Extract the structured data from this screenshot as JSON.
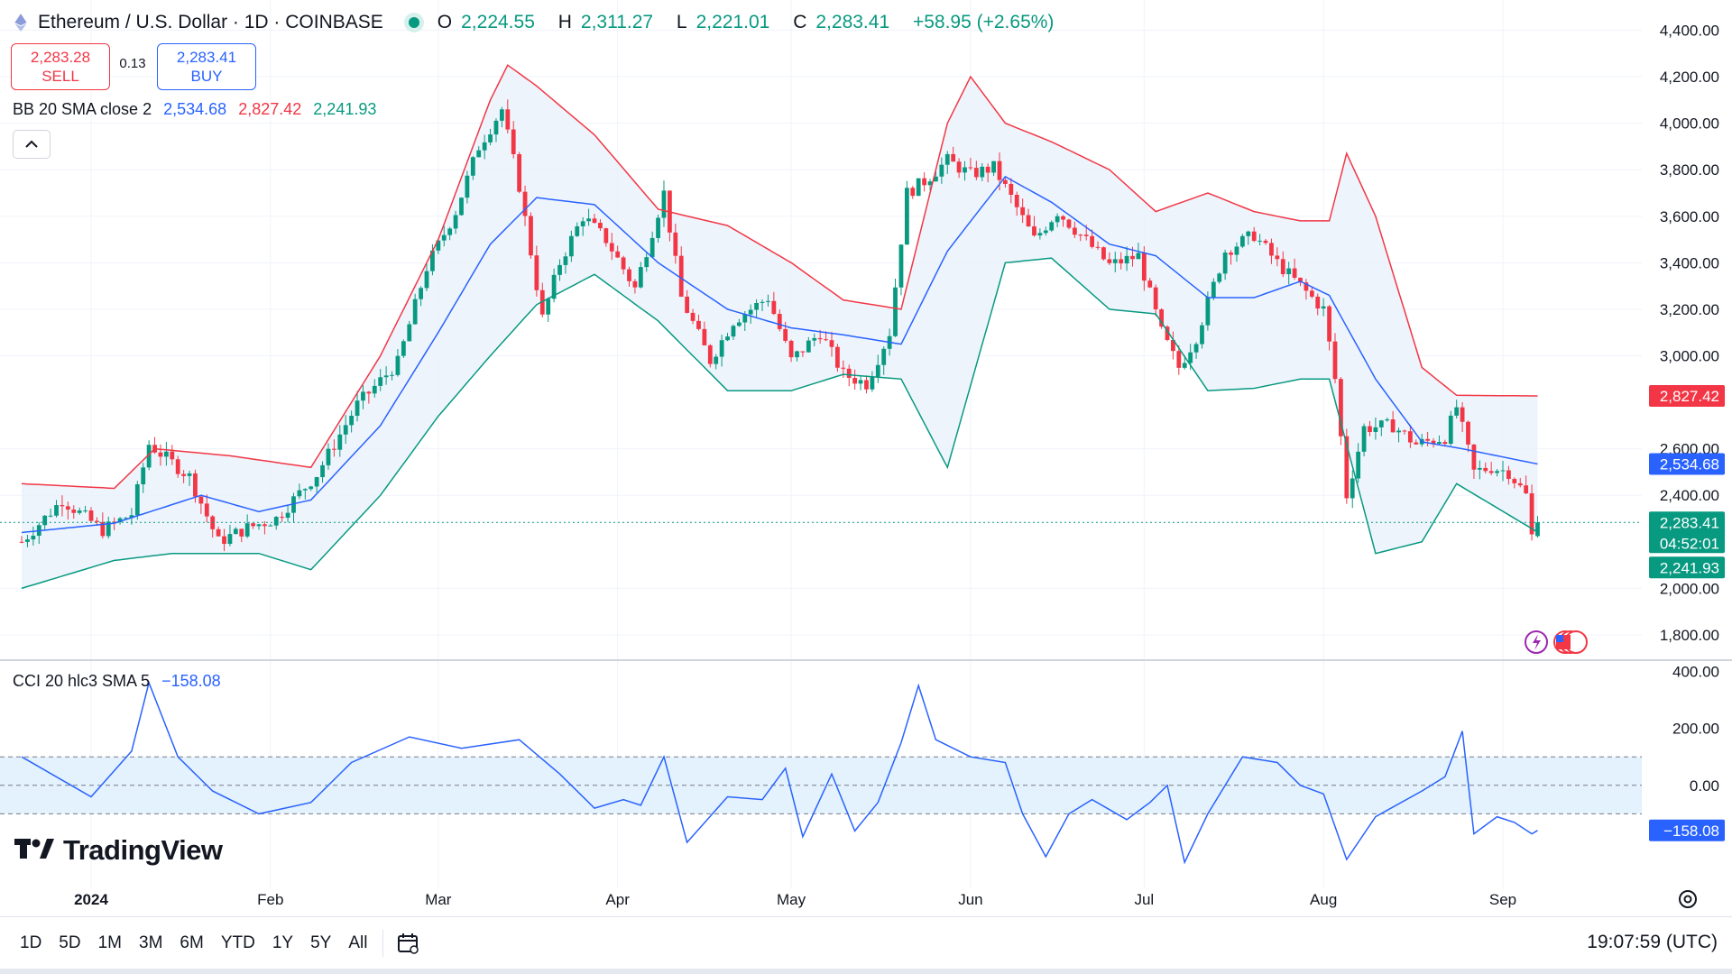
{
  "header": {
    "coin_icon": "ethereum-icon",
    "symbol": "Ethereum / U.S. Dollar · 1D · COINBASE",
    "status_color": "#089981",
    "o_label": "O",
    "o": "2,224.55",
    "h_label": "H",
    "h": "2,311.27",
    "l_label": "L",
    "l": "2,221.01",
    "c_label": "C",
    "c": "2,283.41",
    "change": "+58.95 (+2.65%)"
  },
  "trade": {
    "sell_price": "2,283.28",
    "sell_label": "SELL",
    "spread": "0.13",
    "buy_price": "2,283.41",
    "buy_label": "BUY"
  },
  "indicators": {
    "bb_name": "BB 20 SMA close 2",
    "bb_basis": "2,534.68",
    "bb_upper": "2,827.42",
    "bb_lower": "2,241.93",
    "cci_name": "CCI 20 hlc3 SMA 5",
    "cci_value": "−158.08",
    "collapse_icon": "chevron-up-icon"
  },
  "logo_text": "TradingView",
  "toolbar": {
    "ranges": [
      "1D",
      "5D",
      "1M",
      "3M",
      "6M",
      "YTD",
      "1Y",
      "5Y",
      "All"
    ],
    "calendar_icon": "calendar-icon",
    "clock": "19:07:59 (UTC)"
  },
  "colors": {
    "up": "#089981",
    "down": "#f23645",
    "basis": "#2962ff",
    "upper": "#f23645",
    "lower": "#089981",
    "band_fill": "#e9f1fb",
    "cci": "#2962ff",
    "cci_band": "#e3f2fd"
  },
  "chart_data": [
    {
      "type": "candlestick",
      "title": "Ethereum / U.S. Dollar · 1D · COINBASE",
      "y_ticks": [
        "4,400.00",
        "4,200.00",
        "4,000.00",
        "3,800.00",
        "3,600.00",
        "3,400.00",
        "3,200.00",
        "3,000.00",
        "2,600.00",
        "2,400.00",
        "2,000.00",
        "1,800.00"
      ],
      "ylim": [
        1730,
        4460
      ],
      "x_ticks": [
        "2024",
        "Feb",
        "Mar",
        "Apr",
        "May",
        "Jun",
        "Jul",
        "Aug",
        "Sep"
      ],
      "x_tick_dates": [
        "2024-01-01",
        "2024-02-01",
        "2024-03-01",
        "2024-04-01",
        "2024-05-01",
        "2024-06-01",
        "2024-07-01",
        "2024-08-01",
        "2024-09-01"
      ],
      "price_labels": {
        "bb_upper": "2,827.42",
        "bb_basis": "2,534.68",
        "last": "2,283.41",
        "countdown": "04:52:01",
        "bb_lower": "2,241.93"
      },
      "last_value": 2283.41,
      "series": [
        {
          "name": "ETHUSD",
          "close_points": [
            [
              "2023-12-20",
              2200
            ],
            [
              "2023-12-27",
              2380
            ],
            [
              "2024-01-03",
              2250
            ],
            [
              "2024-01-08",
              2320
            ],
            [
              "2024-01-11",
              2620
            ],
            [
              "2024-01-18",
              2480
            ],
            [
              "2024-01-23",
              2200
            ],
            [
              "2024-01-28",
              2260
            ],
            [
              "2024-02-02",
              2300
            ],
            [
              "2024-02-09",
              2490
            ],
            [
              "2024-02-16",
              2790
            ],
            [
              "2024-02-23",
              2970
            ],
            [
              "2024-02-28",
              3380
            ],
            [
              "2024-03-04",
              3620
            ],
            [
              "2024-03-08",
              3900
            ],
            [
              "2024-03-12",
              4060
            ],
            [
              "2024-03-15",
              3730
            ],
            [
              "2024-03-19",
              3160
            ],
            [
              "2024-03-22",
              3400
            ],
            [
              "2024-03-26",
              3600
            ],
            [
              "2024-03-30",
              3500
            ],
            [
              "2024-04-04",
              3290
            ],
            [
              "2024-04-09",
              3700
            ],
            [
              "2024-04-12",
              3250
            ],
            [
              "2024-04-17",
              2980
            ],
            [
              "2024-04-21",
              3150
            ],
            [
              "2024-04-27",
              3250
            ],
            [
              "2024-05-01",
              2980
            ],
            [
              "2024-05-06",
              3100
            ],
            [
              "2024-05-10",
              2920
            ],
            [
              "2024-05-14",
              2880
            ],
            [
              "2024-05-18",
              3100
            ],
            [
              "2024-05-21",
              3700
            ],
            [
              "2024-05-24",
              3750
            ],
            [
              "2024-05-28",
              3840
            ],
            [
              "2024-06-01",
              3780
            ],
            [
              "2024-06-05",
              3810
            ],
            [
              "2024-06-08",
              3680
            ],
            [
              "2024-06-12",
              3500
            ],
            [
              "2024-06-16",
              3620
            ],
            [
              "2024-06-20",
              3520
            ],
            [
              "2024-06-25",
              3390
            ],
            [
              "2024-06-30",
              3430
            ],
            [
              "2024-07-04",
              3100
            ],
            [
              "2024-07-07",
              2950
            ],
            [
              "2024-07-10",
              3080
            ],
            [
              "2024-07-15",
              3450
            ],
            [
              "2024-07-20",
              3520
            ],
            [
              "2024-07-24",
              3400
            ],
            [
              "2024-07-28",
              3300
            ],
            [
              "2024-08-01",
              3200
            ],
            [
              "2024-08-03",
              2900
            ],
            [
              "2024-08-05",
              2400
            ],
            [
              "2024-08-08",
              2690
            ],
            [
              "2024-08-13",
              2700
            ],
            [
              "2024-08-17",
              2620
            ],
            [
              "2024-08-22",
              2650
            ],
            [
              "2024-08-24",
              2780
            ],
            [
              "2024-08-27",
              2500
            ],
            [
              "2024-08-30",
              2520
            ],
            [
              "2024-09-02",
              2500
            ],
            [
              "2024-09-05",
              2400
            ],
            [
              "2024-09-06",
              2224.55
            ],
            [
              "2024-09-07",
              2283.41
            ]
          ]
        },
        {
          "name": "BB basis",
          "points": [
            [
              "2023-12-20",
              2240
            ],
            [
              "2024-01-05",
              2280
            ],
            [
              "2024-01-20",
              2400
            ],
            [
              "2024-01-30",
              2330
            ],
            [
              "2024-02-08",
              2380
            ],
            [
              "2024-02-20",
              2700
            ],
            [
              "2024-03-01",
              3100
            ],
            [
              "2024-03-10",
              3480
            ],
            [
              "2024-03-18",
              3680
            ],
            [
              "2024-03-28",
              3650
            ],
            [
              "2024-04-08",
              3400
            ],
            [
              "2024-04-20",
              3200
            ],
            [
              "2024-05-01",
              3120
            ],
            [
              "2024-05-10",
              3090
            ],
            [
              "2024-05-20",
              3050
            ],
            [
              "2024-05-28",
              3450
            ],
            [
              "2024-06-07",
              3770
            ],
            [
              "2024-06-15",
              3660
            ],
            [
              "2024-06-25",
              3480
            ],
            [
              "2024-07-03",
              3430
            ],
            [
              "2024-07-12",
              3250
            ],
            [
              "2024-07-20",
              3250
            ],
            [
              "2024-07-28",
              3320
            ],
            [
              "2024-08-02",
              3260
            ],
            [
              "2024-08-10",
              2900
            ],
            [
              "2024-08-18",
              2630
            ],
            [
              "2024-08-25",
              2600
            ],
            [
              "2024-09-07",
              2534.68
            ]
          ]
        },
        {
          "name": "BB upper",
          "points": [
            [
              "2023-12-20",
              2450
            ],
            [
              "2024-01-05",
              2430
            ],
            [
              "2024-01-12",
              2600
            ],
            [
              "2024-01-25",
              2570
            ],
            [
              "2024-02-08",
              2520
            ],
            [
              "2024-02-20",
              3000
            ],
            [
              "2024-03-01",
              3500
            ],
            [
              "2024-03-10",
              4100
            ],
            [
              "2024-03-13",
              4250
            ],
            [
              "2024-03-18",
              4160
            ],
            [
              "2024-03-28",
              3950
            ],
            [
              "2024-04-08",
              3630
            ],
            [
              "2024-04-20",
              3560
            ],
            [
              "2024-05-01",
              3400
            ],
            [
              "2024-05-10",
              3240
            ],
            [
              "2024-05-20",
              3200
            ],
            [
              "2024-05-28",
              4000
            ],
            [
              "2024-06-01",
              4200
            ],
            [
              "2024-06-07",
              4000
            ],
            [
              "2024-06-15",
              3920
            ],
            [
              "2024-06-25",
              3800
            ],
            [
              "2024-07-03",
              3620
            ],
            [
              "2024-07-12",
              3700
            ],
            [
              "2024-07-20",
              3620
            ],
            [
              "2024-07-28",
              3580
            ],
            [
              "2024-08-02",
              3580
            ],
            [
              "2024-08-05",
              3870
            ],
            [
              "2024-08-10",
              3600
            ],
            [
              "2024-08-18",
              2950
            ],
            [
              "2024-08-24",
              2830
            ],
            [
              "2024-09-07",
              2827.42
            ]
          ]
        },
        {
          "name": "BB lower",
          "points": [
            [
              "2023-12-20",
              2000
            ],
            [
              "2024-01-05",
              2120
            ],
            [
              "2024-01-15",
              2150
            ],
            [
              "2024-01-30",
              2150
            ],
            [
              "2024-02-08",
              2080
            ],
            [
              "2024-02-20",
              2400
            ],
            [
              "2024-03-01",
              2740
            ],
            [
              "2024-03-10",
              3000
            ],
            [
              "2024-03-18",
              3220
            ],
            [
              "2024-03-28",
              3350
            ],
            [
              "2024-04-08",
              3150
            ],
            [
              "2024-04-20",
              2850
            ],
            [
              "2024-05-01",
              2850
            ],
            [
              "2024-05-10",
              2920
            ],
            [
              "2024-05-20",
              2900
            ],
            [
              "2024-05-28",
              2520
            ],
            [
              "2024-06-07",
              3400
            ],
            [
              "2024-06-15",
              3420
            ],
            [
              "2024-06-25",
              3200
            ],
            [
              "2024-07-03",
              3180
            ],
            [
              "2024-07-12",
              2850
            ],
            [
              "2024-07-20",
              2860
            ],
            [
              "2024-07-28",
              2900
            ],
            [
              "2024-08-02",
              2900
            ],
            [
              "2024-08-10",
              2150
            ],
            [
              "2024-08-18",
              2200
            ],
            [
              "2024-08-24",
              2450
            ],
            [
              "2024-09-07",
              2241.93
            ]
          ]
        }
      ]
    },
    {
      "type": "line",
      "title": "CCI 20 hlc3 SMA 5",
      "y_ticks": [
        "400.00",
        "200.00",
        "0.00"
      ],
      "ylim": [
        -320,
        420
      ],
      "x": [
        "2023-12-20",
        "2024-01-01",
        "2024-01-08",
        "2024-01-11",
        "2024-01-16",
        "2024-01-22",
        "2024-01-30",
        "2024-02-08",
        "2024-02-15",
        "2024-02-25",
        "2024-03-05",
        "2024-03-15",
        "2024-03-22",
        "2024-03-28",
        "2024-04-02",
        "2024-04-05",
        "2024-04-09",
        "2024-04-13",
        "2024-04-20",
        "2024-04-26",
        "2024-04-30",
        "2024-05-03",
        "2024-05-08",
        "2024-05-12",
        "2024-05-16",
        "2024-05-20",
        "2024-05-23",
        "2024-05-26",
        "2024-06-01",
        "2024-06-07",
        "2024-06-10",
        "2024-06-14",
        "2024-06-18",
        "2024-06-22",
        "2024-06-28",
        "2024-07-02",
        "2024-07-05",
        "2024-07-08",
        "2024-07-12",
        "2024-07-18",
        "2024-07-24",
        "2024-07-28",
        "2024-08-01",
        "2024-08-05",
        "2024-08-10",
        "2024-08-18",
        "2024-08-22",
        "2024-08-25",
        "2024-08-27",
        "2024-08-31",
        "2024-09-03",
        "2024-09-06",
        "2024-09-07"
      ],
      "values": [
        100,
        -40,
        120,
        360,
        100,
        -20,
        -100,
        -60,
        80,
        170,
        130,
        160,
        40,
        -80,
        -50,
        -70,
        100,
        -200,
        -40,
        -50,
        60,
        -180,
        40,
        -160,
        -60,
        150,
        350,
        160,
        100,
        80,
        -100,
        -250,
        -100,
        -50,
        -120,
        -60,
        0,
        -270,
        -100,
        100,
        80,
        0,
        -30,
        -260,
        -110,
        -20,
        30,
        190,
        -170,
        -110,
        -130,
        -170,
        -158.08
      ]
    }
  ]
}
